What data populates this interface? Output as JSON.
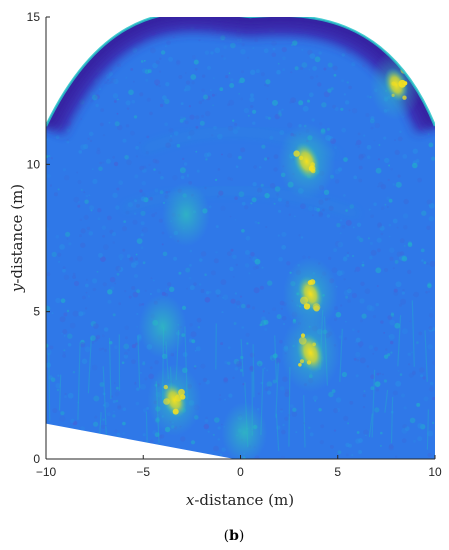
{
  "chart_data": {
    "type": "heatmap",
    "title": "",
    "xlabel_var": "x",
    "xlabel_rest": "-distance (m)",
    "ylabel_var": "y",
    "ylabel_rest": "-distance (m)",
    "xlim": [
      -10,
      10
    ],
    "ylim": [
      0,
      15
    ],
    "x_ticks": [
      -10,
      -5,
      0,
      5,
      10
    ],
    "y_ticks": [
      0,
      5,
      10,
      15
    ],
    "x_tick_labels": [
      "−10",
      "−5",
      "0",
      "5",
      "10"
    ],
    "y_tick_labels": [
      "0",
      "5",
      "10",
      "15"
    ],
    "colormap": "parula",
    "colors": {
      "background": "#2f78e8",
      "edge_band": "#3b2fb3",
      "edge_dark": "#3524a0",
      "rim": "#27c6c9",
      "speckle": "#1fb7c7",
      "hot": "#e3d53a",
      "hottest": "#f5e01f",
      "axis": "#262626"
    },
    "coverage": {
      "apex": [
        0.5,
        15
      ],
      "left_edge": [
        -10,
        11.3
      ],
      "right_edge": [
        10,
        11.3
      ],
      "lower_left_cutoff": [
        [
          -10,
          1.2
        ],
        [
          -0.3,
          0.0
        ]
      ]
    },
    "hot_spots": [
      {
        "x": 3.4,
        "y": 10.1,
        "intensity": 0.9
      },
      {
        "x": 3.6,
        "y": 5.6,
        "intensity": 0.8
      },
      {
        "x": 3.6,
        "y": 3.6,
        "intensity": 0.95
      },
      {
        "x": -3.4,
        "y": 2.0,
        "intensity": 0.75
      },
      {
        "x": 8.0,
        "y": 12.7,
        "intensity": 0.7
      },
      {
        "x": -4.0,
        "y": 4.5,
        "intensity": 0.5
      },
      {
        "x": -2.8,
        "y": 8.3,
        "intensity": 0.5
      },
      {
        "x": 0.2,
        "y": 0.9,
        "intensity": 0.4
      }
    ]
  },
  "caption_text": "b",
  "caption_open": "(",
  "caption_close": ")"
}
